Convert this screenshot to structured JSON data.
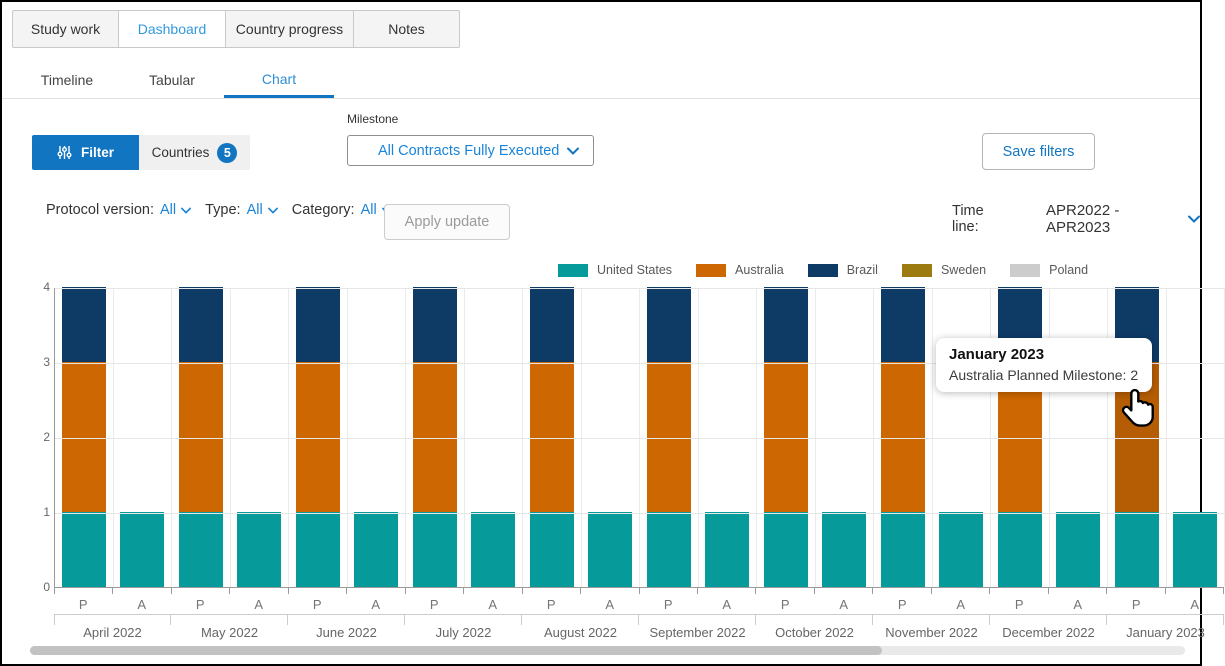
{
  "accent": "#1175c2",
  "top_tabs": [
    {
      "label": "Study work",
      "active": false
    },
    {
      "label": "Dashboard",
      "active": true
    },
    {
      "label": "Country progress",
      "active": false
    },
    {
      "label": "Notes",
      "active": false
    }
  ],
  "sub_tabs": [
    {
      "label": "Timeline",
      "active": false
    },
    {
      "label": "Tabular",
      "active": false
    },
    {
      "label": "Chart",
      "active": true
    }
  ],
  "filter_bar": {
    "filter_label": "Filter",
    "countries_label": "Countries",
    "countries_count": "5",
    "milestone_label": "Milestone",
    "milestone_value": "All Contracts Fully Executed",
    "save_filters_label": "Save filters"
  },
  "filter_row": {
    "protocol_label": "Protocol version:",
    "protocol_value": "All",
    "type_label": "Type:",
    "type_value": "All",
    "category_label": "Category:",
    "category_value": "All",
    "apply_label": "Apply update",
    "timeline_label": "Time line:",
    "timeline_value": "APR2022 - APR2023"
  },
  "tooltip": {
    "title": "January 2023",
    "text": "Australia Planned Milestone: 2"
  },
  "chart_data": {
    "type": "bar",
    "stacked": true,
    "bar_labels": [
      "P",
      "A"
    ],
    "ylim": [
      0,
      4
    ],
    "yticks": [
      0,
      1,
      2,
      3,
      4
    ],
    "grid": true,
    "legend_position": "top",
    "series_names": [
      "United States",
      "Australia",
      "Brazil",
      "Sweden",
      "Poland"
    ],
    "series_colors": [
      "#069a9a",
      "#cc6701",
      "#0e3a66",
      "#9c7c10",
      "#cccccc"
    ],
    "categories": [
      "April 2022",
      "May 2022",
      "June 2022",
      "July 2022",
      "August 2022",
      "September 2022",
      "October 2022",
      "November 2022",
      "December 2022",
      "January 2023"
    ],
    "planned": [
      [
        1,
        2,
        1,
        0,
        0
      ],
      [
        1,
        2,
        1,
        0,
        0
      ],
      [
        1,
        2,
        1,
        0,
        0
      ],
      [
        1,
        2,
        1,
        0,
        0
      ],
      [
        1,
        2,
        1,
        0,
        0
      ],
      [
        1,
        2,
        1,
        0,
        0
      ],
      [
        1,
        2,
        1,
        0,
        0
      ],
      [
        1,
        2,
        1,
        0,
        0
      ],
      [
        1,
        2,
        1,
        0,
        0
      ],
      [
        1,
        2,
        1,
        0,
        0
      ]
    ],
    "actual": [
      [
        1,
        0,
        0,
        0,
        0
      ],
      [
        1,
        0,
        0,
        0,
        0
      ],
      [
        1,
        0,
        0,
        0,
        0
      ],
      [
        1,
        0,
        0,
        0,
        0
      ],
      [
        1,
        0,
        0,
        0,
        0
      ],
      [
        1,
        0,
        0,
        0,
        0
      ],
      [
        1,
        0,
        0,
        0,
        0
      ],
      [
        1,
        0,
        0,
        0,
        0
      ],
      [
        1,
        0,
        0,
        0,
        0
      ],
      [
        1,
        0,
        0,
        0,
        0
      ]
    ],
    "highlight": {
      "category": "January 2023",
      "bar": "P",
      "series": "Australia"
    },
    "highlight_color": "#b55d04"
  }
}
